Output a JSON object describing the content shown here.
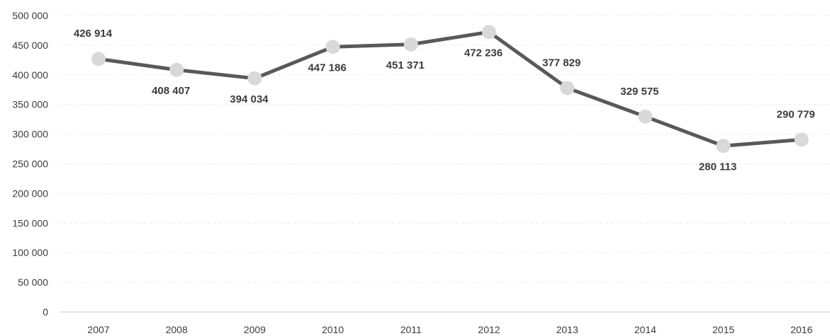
{
  "chart_data": {
    "type": "line",
    "title": "",
    "xlabel": "",
    "ylabel": "",
    "categories": [
      "2007",
      "2008",
      "2009",
      "2010",
      "2011",
      "2012",
      "2013",
      "2014",
      "2015",
      "2016"
    ],
    "series": [
      {
        "values": [
          426914,
          408407,
          394034,
          447186,
          451371,
          472236,
          377829,
          329575,
          280113,
          290779
        ]
      }
    ],
    "data_labels": [
      "426 914",
      "408 407",
      "394 034",
      "447 186",
      "451 371",
      "472 236",
      "377 829",
      "329 575",
      "280 113",
      "290 779"
    ],
    "data_label_positions": [
      "above",
      "below",
      "below",
      "below",
      "below",
      "below",
      "above",
      "above",
      "below",
      "above"
    ],
    "y_ticks": [
      0,
      50000,
      100000,
      150000,
      200000,
      250000,
      300000,
      350000,
      400000,
      450000,
      500000
    ],
    "y_tick_labels": [
      "0",
      "50 000",
      "100 000",
      "150 000",
      "200 000",
      "250 000",
      "300 000",
      "350 000",
      "400 000",
      "450 000",
      "500 000"
    ],
    "ylim": [
      0,
      500000
    ],
    "grid": true,
    "line_color": "#595959",
    "marker_color": "#d9d9d9",
    "grid_color": "#ececec",
    "text_color": "#3c3c3c"
  }
}
